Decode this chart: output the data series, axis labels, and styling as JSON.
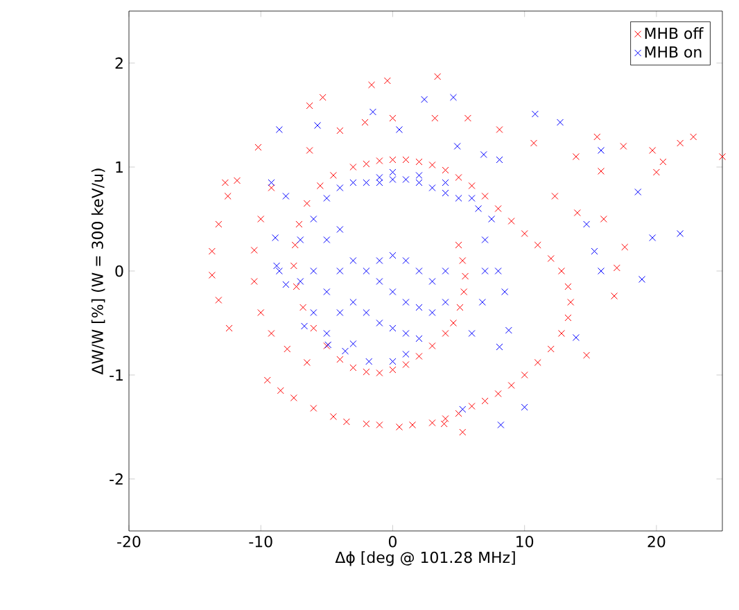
{
  "chart_data": {
    "type": "scatter",
    "xlabel": "Δϕ [deg @ 101.28 MHz]",
    "ylabel": "ΔW/W [%] (W = 300 keV/u)",
    "xlim": [
      -20,
      25
    ],
    "ylim": [
      -2.5,
      2.5
    ],
    "xticks": [
      -20,
      -10,
      0,
      10,
      20
    ],
    "yticks": [
      -2,
      -1,
      0,
      1,
      2
    ],
    "grid": false,
    "legend": "top right",
    "marker": "cross",
    "series": [
      {
        "name": "MHB off",
        "color": "#ff0000",
        "x": [
          5,
          5.3,
          5.5,
          5.4,
          5.1,
          4.6,
          4,
          3,
          2,
          1,
          0,
          -1,
          -2,
          -3,
          -4,
          -5,
          -6,
          -6.8,
          -7.3,
          -7.5,
          -7.4,
          -7.1,
          -6.5,
          -5.5,
          -4.5,
          -3,
          -2,
          -1,
          0,
          1,
          2,
          3,
          4,
          5,
          6,
          7,
          8,
          9,
          10,
          11,
          12,
          12.8,
          13.3,
          13.5,
          13.3,
          12.8,
          12,
          11,
          10,
          9,
          8,
          7,
          6,
          5,
          4,
          3,
          1.5,
          0.5,
          -1,
          -2,
          -3.5,
          -4.5,
          -6,
          -7.5,
          -8.5,
          -9.5,
          -12.4,
          -13.2,
          -13.7,
          -13.7,
          -13.2,
          -12.7,
          -12.5,
          -11.8,
          -10.2,
          -6.3,
          -5.3,
          -1.6,
          -0.4,
          3.4,
          -9.2,
          -10,
          -10.5,
          -10.5,
          -10,
          -9.2,
          -8,
          -6.5,
          -6.3,
          -4,
          -2.1,
          0,
          3.2,
          5.7,
          8.1,
          10.7,
          13.9,
          15.5,
          17.5,
          19.7,
          20.5,
          21.8,
          22.8,
          25,
          20,
          15.8,
          16,
          17.6,
          17,
          16.8,
          14.7,
          5.3,
          3.9,
          12.3,
          14
        ],
        "values": [
          0.25,
          0.1,
          -0.05,
          -0.2,
          -0.35,
          -0.5,
          -0.6,
          -0.72,
          -0.82,
          -0.9,
          -0.95,
          -0.98,
          -0.97,
          -0.93,
          -0.85,
          -0.72,
          -0.55,
          -0.35,
          -0.15,
          0.05,
          0.25,
          0.45,
          0.65,
          0.82,
          0.92,
          1.0,
          1.03,
          1.06,
          1.07,
          1.07,
          1.05,
          1.02,
          0.97,
          0.9,
          0.82,
          0.72,
          0.6,
          0.48,
          0.36,
          0.25,
          0.12,
          0,
          -0.15,
          -0.3,
          -0.45,
          -0.6,
          -0.75,
          -0.88,
          -1.0,
          -1.1,
          -1.18,
          -1.25,
          -1.3,
          -1.37,
          -1.42,
          -1.46,
          -1.48,
          -1.5,
          -1.48,
          -1.47,
          -1.45,
          -1.4,
          -1.32,
          -1.22,
          -1.15,
          -1.05,
          -0.55,
          -0.28,
          -0.04,
          0.19,
          0.45,
          0.85,
          0.72,
          0.87,
          1.19,
          1.59,
          1.67,
          1.79,
          1.83,
          1.87,
          0.8,
          0.5,
          0.2,
          -0.1,
          -0.4,
          -0.6,
          -0.75,
          -0.88,
          1.16,
          1.35,
          1.43,
          1.47,
          1.47,
          1.47,
          1.36,
          1.23,
          1.1,
          1.29,
          1.2,
          1.16,
          1.05,
          1.23,
          1.29,
          1.1,
          0.95,
          0.96,
          0.5,
          0.23,
          0.03,
          -0.24,
          -0.81,
          -1.55,
          -1.47,
          0.72,
          0.56
        ]
      },
      {
        "name": "MHB on",
        "color": "#0000ff",
        "x": [
          -6,
          -6,
          -6,
          -5,
          -5,
          -5,
          -5,
          -4,
          -4,
          -4,
          -4,
          -3,
          -3,
          -3,
          -3,
          -2,
          -2,
          -2,
          -1,
          -1,
          -1,
          -1,
          0,
          0,
          0,
          0,
          1,
          1,
          1,
          1,
          1,
          2,
          2,
          2,
          2,
          3,
          3,
          3,
          4,
          4,
          4,
          5,
          6,
          6.5,
          7,
          7,
          6.8,
          6,
          7.5,
          8,
          8.5,
          -1,
          0,
          2,
          4,
          -5.7,
          -9.2,
          -8.1,
          -8.9,
          -8.8,
          -8.6,
          -8.1,
          -6.7,
          -4.9,
          -3.6,
          -1.8,
          0,
          -8.6,
          0.5,
          -1.5,
          2.4,
          4.6,
          4.9,
          6.9,
          8.1,
          10.8,
          12.7,
          15.8,
          18.6,
          14.7,
          15.3,
          19.7,
          21.8,
          15.8,
          18.9,
          13.9,
          10,
          8.2,
          5.3,
          8.8,
          8.1,
          -7,
          -7
        ],
        "values": [
          0.5,
          0,
          -0.4,
          0.7,
          0.3,
          -0.2,
          -0.6,
          0.8,
          0.4,
          0,
          -0.4,
          0.85,
          0.1,
          -0.3,
          -0.7,
          0.85,
          0,
          -0.4,
          0.85,
          0.1,
          -0.1,
          -0.5,
          0.88,
          0.15,
          -0.2,
          -0.55,
          0.88,
          0.1,
          -0.3,
          -0.6,
          -0.8,
          0.85,
          0,
          -0.35,
          -0.65,
          0.8,
          -0.1,
          -0.4,
          0.75,
          0,
          -0.3,
          0.7,
          0.7,
          0.6,
          0.3,
          0,
          -0.3,
          -0.6,
          0.5,
          0,
          -0.2,
          0.9,
          0.95,
          0.92,
          0.85,
          1.4,
          0.85,
          0.72,
          0.32,
          0.05,
          0,
          -0.13,
          -0.53,
          -0.71,
          -0.77,
          -0.87,
          -0.87,
          1.36,
          1.36,
          1.53,
          1.65,
          1.67,
          1.2,
          1.12,
          1.07,
          1.51,
          1.43,
          1.16,
          0.76,
          0.45,
          0.19,
          0.32,
          0.36,
          0,
          -0.08,
          -0.64,
          -1.31,
          -1.48,
          -1.33,
          -0.57,
          -0.73,
          0.3,
          -0.1
        ]
      }
    ]
  }
}
